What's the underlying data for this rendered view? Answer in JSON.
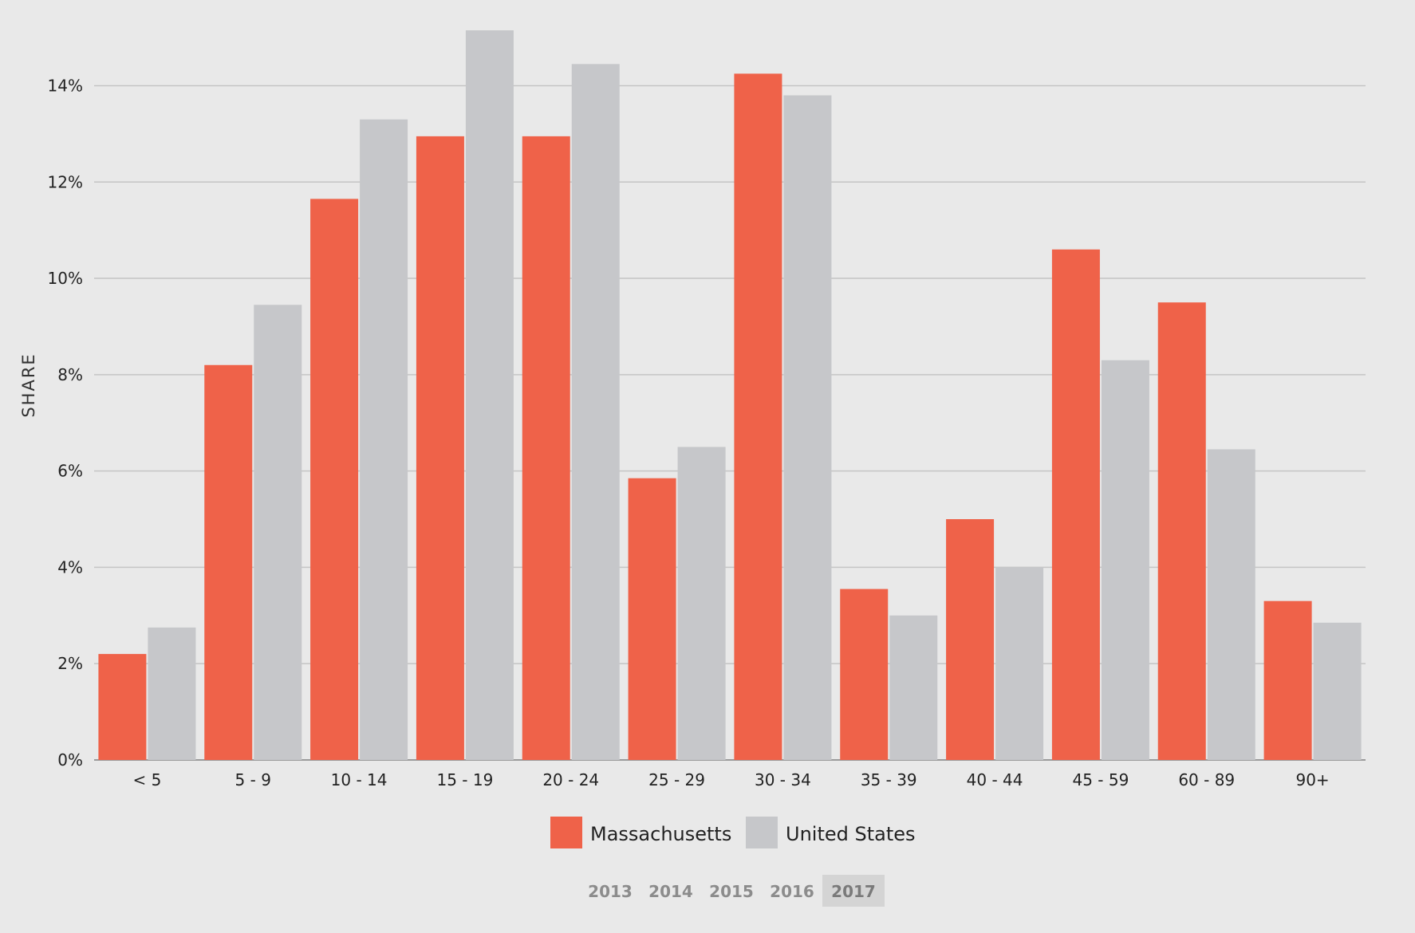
{
  "chart_data": {
    "type": "bar",
    "ylabel": "SHARE",
    "xlabel": "",
    "ylim": [
      0,
      15.2
    ],
    "yticks": [
      0,
      2,
      4,
      6,
      8,
      10,
      12,
      14
    ],
    "ytick_labels": [
      "0%",
      "2%",
      "4%",
      "6%",
      "8%",
      "10%",
      "12%",
      "14%"
    ],
    "grid": true,
    "legend_position": "bottom-center",
    "categories": [
      "< 5",
      "5 - 9",
      "10 - 14",
      "15 - 19",
      "20 - 24",
      "25 - 29",
      "30 - 34",
      "35 - 39",
      "40 - 44",
      "45 - 59",
      "60 - 89",
      "90+"
    ],
    "series": [
      {
        "name": "Massachusetts",
        "color": "#ef6249",
        "values": [
          2.2,
          8.2,
          11.65,
          12.95,
          12.95,
          5.85,
          14.25,
          3.55,
          5.0,
          10.6,
          9.5,
          3.3
        ]
      },
      {
        "name": "United States",
        "color": "#c6c7ca",
        "values": [
          2.75,
          9.45,
          13.3,
          15.15,
          14.45,
          6.5,
          13.8,
          3.0,
          4.0,
          8.3,
          6.45,
          2.85
        ]
      }
    ]
  },
  "colors": {
    "background": "#e9e9e9",
    "grid": "#c4c4c4",
    "axis": "#9a9a9a",
    "year_active_bg": "#d4d4d4"
  },
  "years": {
    "options": [
      "2013",
      "2014",
      "2015",
      "2016",
      "2017"
    ],
    "selected": "2017"
  }
}
